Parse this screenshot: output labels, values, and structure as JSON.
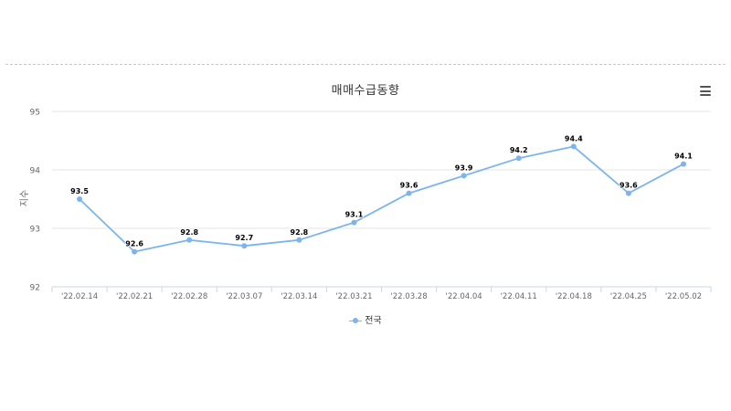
{
  "chart_data": {
    "type": "line",
    "title": "매매수급동향",
    "ylabel": "지수",
    "xlabel": "",
    "ylim": [
      92,
      95
    ],
    "yticks": [
      92,
      93,
      94,
      95
    ],
    "categories": [
      "'22.02.14",
      "'22.02.21",
      "'22.02.28",
      "'22.03.07",
      "'22.03.14",
      "'22.03.21",
      "'22.03.28",
      "'22.04.04",
      "'22.04.11",
      "'22.04.18",
      "'22.04.25",
      "'22.05.02"
    ],
    "series": [
      {
        "name": "전국",
        "color": "#7cb5ec",
        "values": [
          93.5,
          92.6,
          92.8,
          92.7,
          92.8,
          93.1,
          93.6,
          93.9,
          94.2,
          94.4,
          93.6,
          94.1
        ]
      }
    ],
    "grid": true,
    "legend_position": "bottom-center",
    "menu_icon": "hamburger-menu-icon"
  }
}
